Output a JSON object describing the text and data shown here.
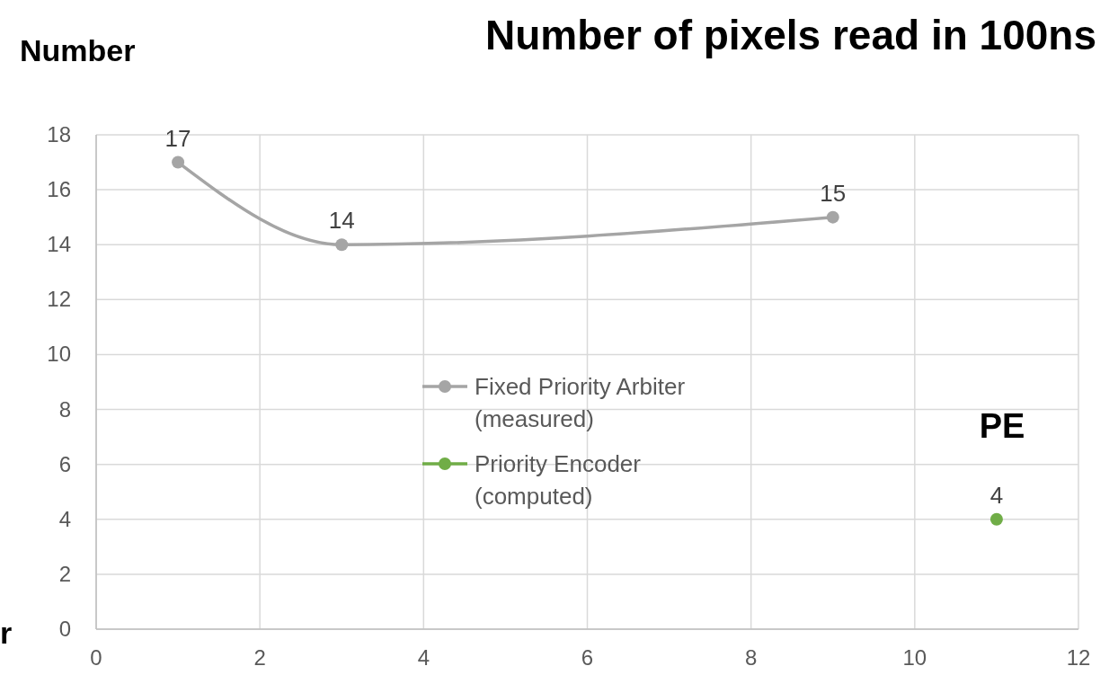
{
  "chart_data": {
    "type": "line",
    "title": "Number of pixels read in 100ns",
    "ylabel": "Number",
    "annotations": [
      "r",
      "PE"
    ],
    "series": [
      {
        "name": "Fixed Priority Arbiter (measured)",
        "color": "#a5a5a5",
        "x": [
          1,
          3,
          9
        ],
        "values": [
          17,
          14,
          15
        ]
      },
      {
        "name": "Priority Encoder (computed)",
        "color": "#70ad47",
        "x": [
          11
        ],
        "values": [
          4
        ]
      }
    ],
    "xlim": [
      0,
      12
    ],
    "xticks": [
      0,
      2,
      4,
      6,
      8,
      10,
      12
    ],
    "ylim": [
      0,
      18
    ],
    "yticks": [
      0,
      2,
      4,
      6,
      8,
      10,
      12,
      14,
      16,
      18
    ],
    "grid": true,
    "legend": "center",
    "marker": "circle",
    "line_style": "solid",
    "data_labels": true
  }
}
